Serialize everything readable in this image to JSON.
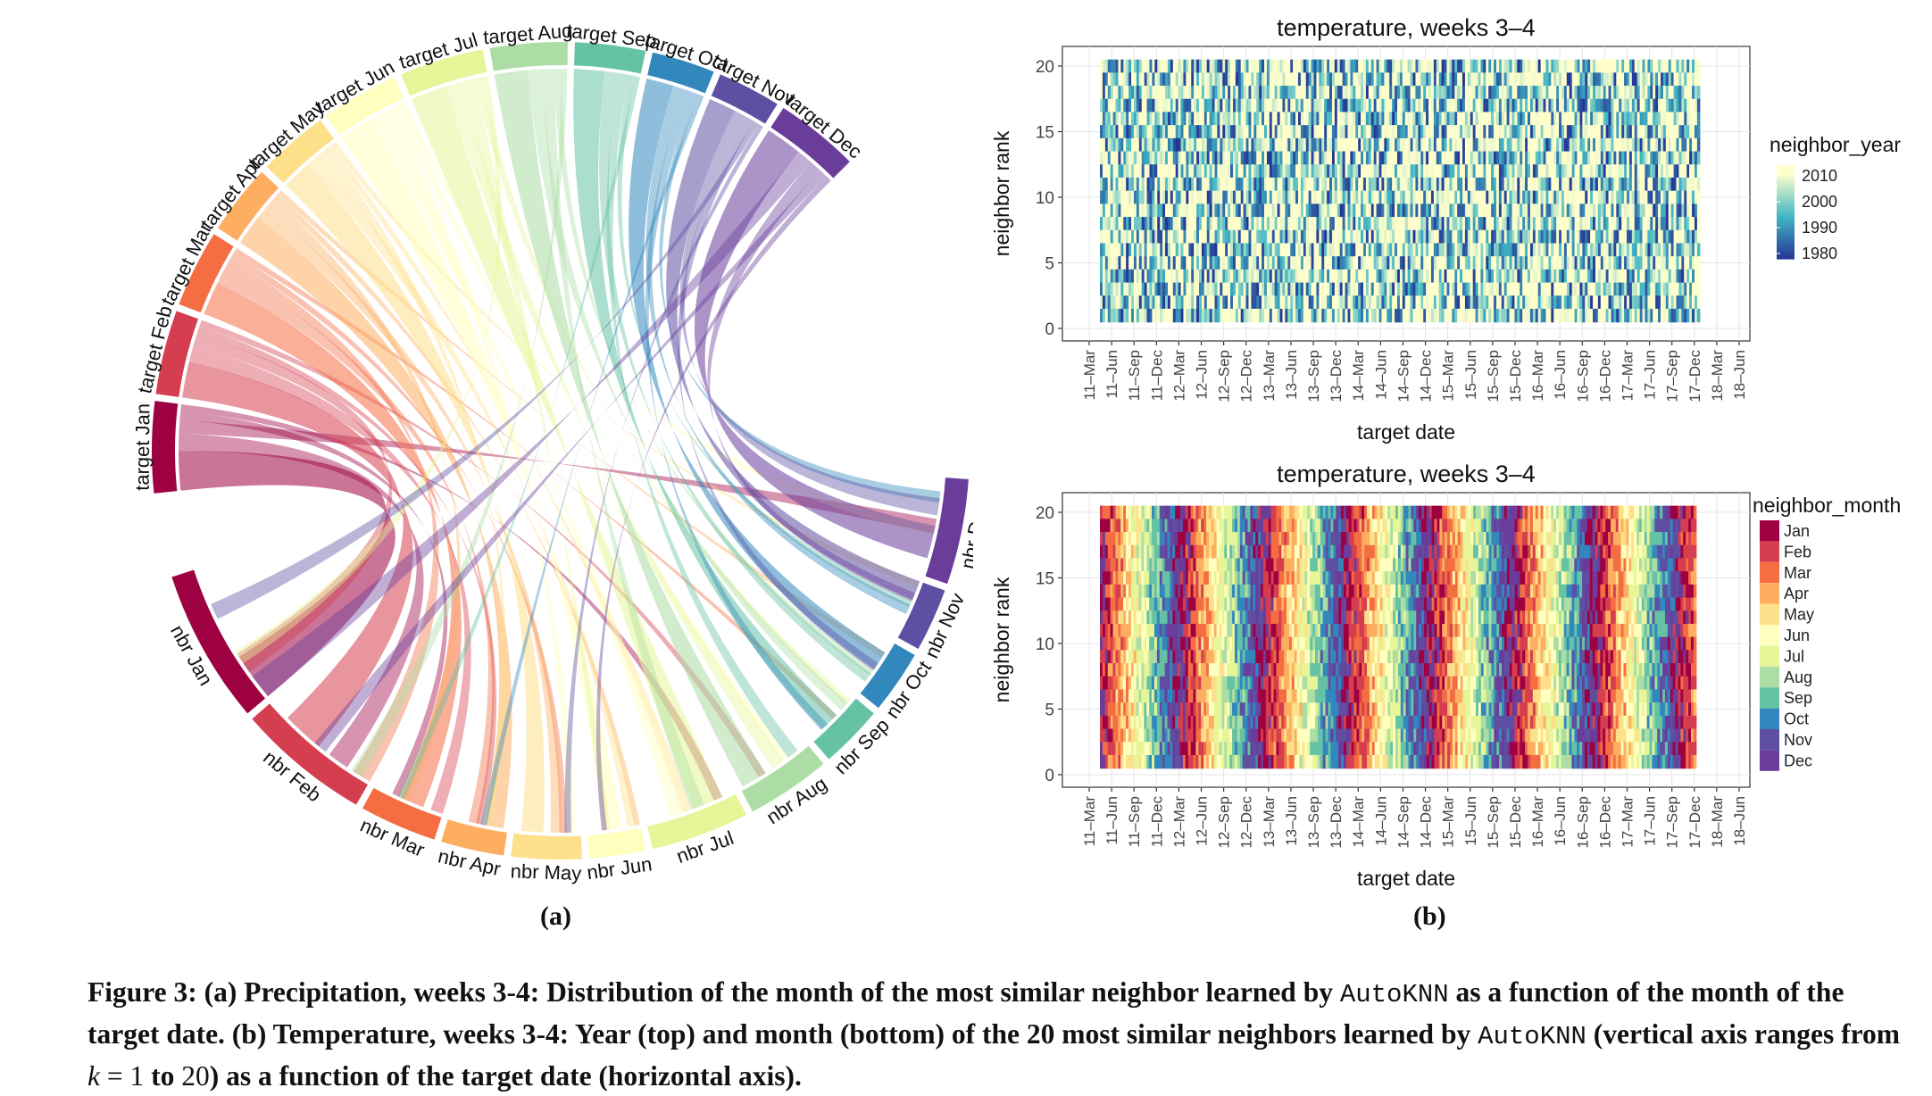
{
  "colors": {
    "Jan": "#9e0142",
    "Feb": "#d53e4f",
    "Mar": "#f46d43",
    "Apr": "#fdae61",
    "May": "#fee08b",
    "Jun": "#ffffbf",
    "Jul": "#e6f598",
    "Aug": "#abdda4",
    "Sep": "#66c2a5",
    "Oct": "#3288bd",
    "Nov": "#5e4fa2",
    "Dec": "#6a3d9a",
    "year_low": "#253494",
    "year_mid": "#41b6c4",
    "year_high": "#ffffcc"
  },
  "panel_labels": {
    "a": "(a)",
    "b": "(b)"
  },
  "chart_data": [
    {
      "type": "chord",
      "target_labels": [
        "target Jan",
        "target Feb",
        "target Mar",
        "target Apr",
        "target May",
        "target Jun",
        "target Jul",
        "target Aug",
        "target Sep",
        "target Oct",
        "target Nov",
        "target Dec"
      ],
      "neighbor_labels": [
        "nbr Jan",
        "nbr Feb",
        "nbr Mar",
        "nbr Apr",
        "nbr May",
        "nbr Jun",
        "nbr Jul",
        "nbr Aug",
        "nbr Sep",
        "nbr Oct",
        "nbr Nov",
        "nbr Dec"
      ]
    },
    {
      "type": "heatmap",
      "title": "temperature, weeks 3–4",
      "xlabel": "target date",
      "ylabel": "neighbor rank",
      "y_ticks": [
        0,
        5,
        10,
        15,
        20
      ],
      "ylim": [
        0,
        20
      ],
      "x_ticks": [
        "11–Mar",
        "11–Jun",
        "11–Sep",
        "11–Dec",
        "12–Mar",
        "12–Jun",
        "12–Sep",
        "12–Dec",
        "13–Mar",
        "13–Jun",
        "13–Sep",
        "13–Dec",
        "14–Mar",
        "14–Jun",
        "14–Sep",
        "14–Dec",
        "15–Mar",
        "15–Jun",
        "15–Sep",
        "15–Dec",
        "16–Mar",
        "16–Jun",
        "16–Sep",
        "16–Dec",
        "17–Mar",
        "17–Jun",
        "17–Sep",
        "17–Dec",
        "18–Mar",
        "18–Jun"
      ],
      "legend_title": "neighbor_year",
      "legend_ticks": [
        "2010",
        "2000",
        "1990",
        "1980"
      ],
      "legend_placement": "right"
    },
    {
      "type": "heatmap",
      "title": "temperature, weeks 3–4",
      "xlabel": "target date",
      "ylabel": "neighbor rank",
      "y_ticks": [
        0,
        5,
        10,
        15,
        20
      ],
      "ylim": [
        0,
        20
      ],
      "x_ticks": [
        "11–Mar",
        "11–Jun",
        "11–Sep",
        "11–Dec",
        "12–Mar",
        "12–Jun",
        "12–Sep",
        "12–Dec",
        "13–Mar",
        "13–Jun",
        "13–Sep",
        "13–Dec",
        "14–Mar",
        "14–Jun",
        "14–Sep",
        "14–Dec",
        "15–Mar",
        "15–Jun",
        "15–Sep",
        "15–Dec",
        "16–Mar",
        "16–Jun",
        "16–Sep",
        "16–Dec",
        "17–Mar",
        "17–Jun",
        "17–Sep",
        "17–Dec",
        "18–Mar",
        "18–Jun"
      ],
      "legend_title": "neighbor_month",
      "legend_entries": [
        "Jan",
        "Feb",
        "Mar",
        "Apr",
        "May",
        "Jun",
        "Jul",
        "Aug",
        "Sep",
        "Oct",
        "Nov",
        "Dec"
      ],
      "legend_placement": "right"
    }
  ],
  "caption": {
    "line1": "Figure 3: (a) Precipitation, weeks 3-4: Distribution of the month of the most similar neighbor learned by ",
    "code1": "AutoKNN",
    "line1b": " as a function of the month of the target date. (b) Temperature, weeks 3-4: Year (top) and month (bottom) of the 20 most similar neighbors learned by ",
    "code2": "AutoKNN",
    "line2": " (vertical axis ranges from ",
    "k": "k",
    "eq": " = ",
    "one": "1",
    "to": " to ",
    "twenty": "20",
    "line3": ") as a function of the target date (horizontal axis)."
  }
}
